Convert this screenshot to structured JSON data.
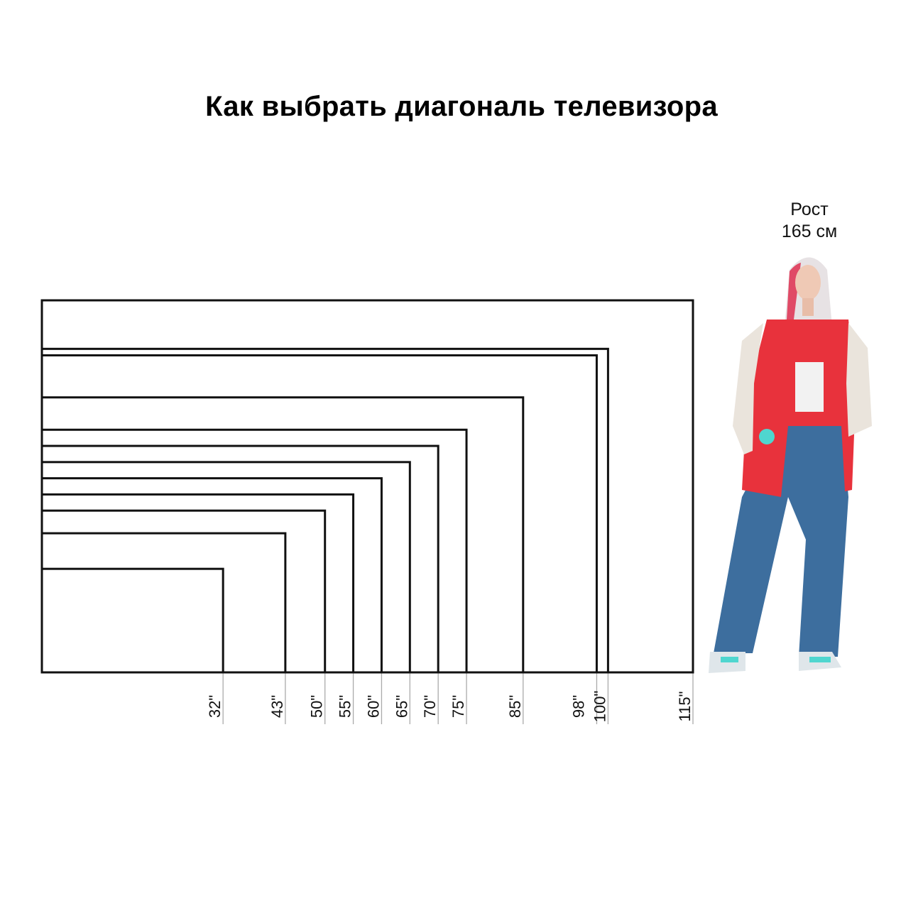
{
  "title": "Как выбрать диагональ телевизора",
  "person": {
    "height_label_line1": "Рост",
    "height_label_line2": "165 см",
    "height_cm": 165,
    "jacket_color": "#e8323c",
    "jeans_color": "#3d6e9e",
    "accent_color": "#4fd6cf"
  },
  "chart_data": {
    "type": "diagram",
    "aspect_ratio": "16:9",
    "unit": "\"",
    "diagonals": [
      32,
      43,
      50,
      55,
      60,
      65,
      70,
      75,
      85,
      98,
      100,
      115
    ],
    "labels": [
      "32\"",
      "43\"",
      "50\"",
      "55\"",
      "60\"",
      "65\"",
      "70\"",
      "75\"",
      "85\"",
      "98\"",
      "100\"",
      "115\""
    ]
  }
}
